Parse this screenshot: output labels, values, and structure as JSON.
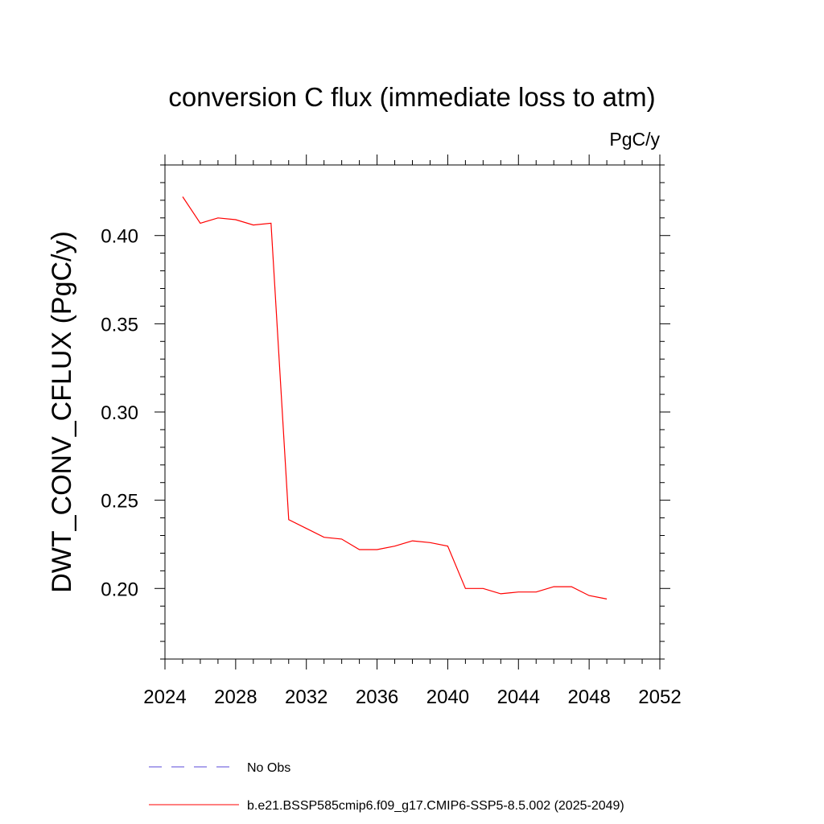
{
  "chart_data": {
    "type": "line",
    "title": "conversion C flux (immediate loss to atm)",
    "units": "PgC/y",
    "ylabel": "DWT_CONV_CFLUX  (PgC/y)",
    "xlabel": "",
    "xlim": [
      2024,
      2052
    ],
    "ylim": [
      0.16,
      0.44
    ],
    "x_ticks": [
      2024,
      2028,
      2032,
      2036,
      2040,
      2044,
      2048,
      2052
    ],
    "y_ticks": [
      0.2,
      0.25,
      0.3,
      0.35,
      0.4
    ],
    "x_tick_labels": [
      "2024",
      "2028",
      "2032",
      "2036",
      "2040",
      "2044",
      "2048",
      "2052"
    ],
    "y_tick_labels": [
      "0.20",
      "0.25",
      "0.30",
      "0.35",
      "0.40"
    ],
    "grid": false,
    "legend_position": "bottom",
    "series": [
      {
        "name": "No Obs",
        "color": "#5a4ad8",
        "dash": "dashed",
        "x": [],
        "values": []
      },
      {
        "name": "b.e21.BSSP585cmip6.f09_g17.CMIP6-SSP5-8.5.002 (2025-2049)",
        "color": "#ff0000",
        "dash": "solid",
        "x": [
          2025,
          2026,
          2027,
          2028,
          2029,
          2030,
          2031,
          2032,
          2033,
          2034,
          2035,
          2036,
          2037,
          2038,
          2039,
          2040,
          2041,
          2042,
          2043,
          2044,
          2045,
          2046,
          2047,
          2048,
          2049
        ],
        "values": [
          0.422,
          0.407,
          0.41,
          0.409,
          0.406,
          0.407,
          0.239,
          0.234,
          0.229,
          0.228,
          0.222,
          0.222,
          0.224,
          0.227,
          0.226,
          0.224,
          0.2,
          0.2,
          0.197,
          0.198,
          0.198,
          0.201,
          0.201,
          0.196,
          0.194
        ]
      }
    ]
  }
}
